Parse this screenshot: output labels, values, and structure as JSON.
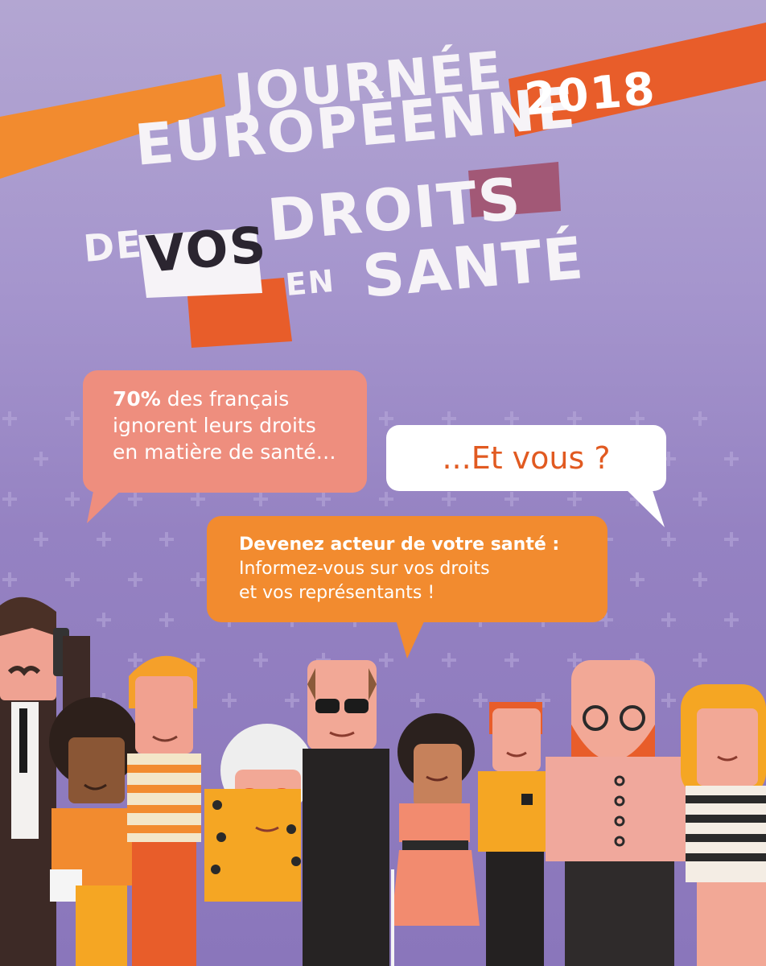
{
  "title": {
    "line1": "JOURNÉE",
    "line2": "EUROPÉENNE",
    "line3_de": "DE",
    "line3_vos": "VOS",
    "line3_droits": "DROITS",
    "line4_en": "EN",
    "line4_sante": "SANTÉ",
    "year": "2018"
  },
  "bubbles": {
    "stat_percent": "70%",
    "stat_line1": " des français",
    "stat_line2": "ignorent leurs droits",
    "stat_line3": "en matière de santé…",
    "question": "...Et vous ?",
    "cta_heading": "Devenez acteur de votre santé :",
    "cta_line2": "Informez-vous sur vos droits",
    "cta_line3": "et vos représentants !"
  },
  "colors": {
    "background": "#9f8fca",
    "orange": "#f28b2f",
    "red_orange": "#e85d2a",
    "salmon": "#ee8e7e",
    "mauve": "#a25876"
  },
  "illustration": "group-of-diverse-people"
}
